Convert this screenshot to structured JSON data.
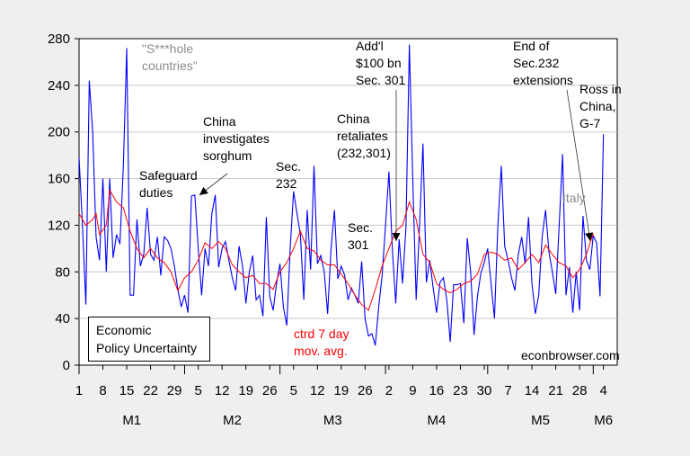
{
  "chart_data": {
    "type": "line",
    "title": "",
    "xlabel": "",
    "ylabel": "",
    "ylim": [
      0,
      280
    ],
    "yticks": [
      0,
      40,
      80,
      120,
      160,
      200,
      240,
      280
    ],
    "grid": true,
    "x_ticks": [
      {
        "day": 1,
        "label": "1"
      },
      {
        "day": 8,
        "label": "8"
      },
      {
        "day": 15,
        "label": "15"
      },
      {
        "day": 22,
        "label": "22"
      },
      {
        "day": 29,
        "label": "29"
      },
      {
        "day": 36,
        "label": "5"
      },
      {
        "day": 43,
        "label": "12"
      },
      {
        "day": 50,
        "label": "19"
      },
      {
        "day": 57,
        "label": "26"
      },
      {
        "day": 64,
        "label": "5"
      },
      {
        "day": 71,
        "label": "12"
      },
      {
        "day": 78,
        "label": "19"
      },
      {
        "day": 85,
        "label": "26"
      },
      {
        "day": 92,
        "label": "2"
      },
      {
        "day": 99,
        "label": "9"
      },
      {
        "day": 106,
        "label": "16"
      },
      {
        "day": 113,
        "label": "23"
      },
      {
        "day": 120,
        "label": "30"
      },
      {
        "day": 127,
        "label": "7"
      },
      {
        "day": 134,
        "label": "14"
      },
      {
        "day": 141,
        "label": "21"
      },
      {
        "day": 148,
        "label": "28"
      },
      {
        "day": 155,
        "label": "4"
      }
    ],
    "months": [
      {
        "start_day": 1,
        "label": "M1"
      },
      {
        "start_day": 32,
        "label": "M2"
      },
      {
        "start_day": 60,
        "label": "M3"
      },
      {
        "start_day": 91,
        "label": "M4"
      },
      {
        "start_day": 121,
        "label": "M5"
      },
      {
        "start_day": 152,
        "label": "M6"
      }
    ],
    "series": [
      {
        "name": "Economic Policy Uncertainty",
        "color": "#0000ff",
        "values": [
          178,
          120,
          52,
          244,
          200,
          110,
          90,
          160,
          80,
          160,
          92,
          112,
          104,
          170,
          272,
          60,
          60,
          125,
          85,
          95,
          135,
          95,
          90,
          110,
          77,
          110,
          107,
          100,
          85,
          65,
          50,
          60,
          45,
          145,
          146,
          100,
          60,
          100,
          85,
          130,
          146,
          84,
          100,
          106,
          90,
          75,
          64,
          102,
          85,
          53,
          80,
          94,
          56,
          60,
          42,
          127,
          59,
          47,
          70,
          87,
          50,
          34,
          100,
          149,
          130,
          112,
          56,
          133,
          82,
          171,
          87,
          94,
          80,
          44,
          100,
          133,
          74,
          85,
          77,
          56,
          66,
          60,
          53,
          89,
          40,
          25,
          27,
          17,
          50,
          77,
          120,
          166,
          100,
          53,
          108,
          70,
          118,
          275,
          160,
          56,
          120,
          190,
          71,
          90,
          66,
          45,
          71,
          75,
          56,
          20,
          69,
          69,
          70,
          36,
          109,
          80,
          26,
          59,
          79,
          88,
          100,
          70,
          40,
          120,
          171,
          102,
          90,
          75,
          64,
          95,
          110,
          87,
          127,
          70,
          44,
          60,
          110,
          133,
          97,
          80,
          61,
          120,
          181,
          60,
          84,
          45,
          80,
          47,
          128,
          90,
          82,
          111,
          105,
          59,
          198
        ]
      },
      {
        "name": "ctrd 7 day mov. avg.",
        "color": "#ff0000",
        "points": [
          [
            1,
            130
          ],
          [
            3,
            120
          ],
          [
            5,
            125
          ],
          [
            6,
            130
          ],
          [
            7,
            112
          ],
          [
            9,
            120
          ],
          [
            10,
            150
          ],
          [
            12,
            140
          ],
          [
            14,
            135
          ],
          [
            16,
            115
          ],
          [
            18,
            100
          ],
          [
            20,
            92
          ],
          [
            22,
            100
          ],
          [
            24,
            92
          ],
          [
            26,
            88
          ],
          [
            28,
            80
          ],
          [
            30,
            64
          ],
          [
            32,
            75
          ],
          [
            34,
            80
          ],
          [
            36,
            90
          ],
          [
            38,
            105
          ],
          [
            40,
            100
          ],
          [
            42,
            106
          ],
          [
            44,
            100
          ],
          [
            46,
            86
          ],
          [
            48,
            80
          ],
          [
            50,
            75
          ],
          [
            52,
            77
          ],
          [
            54,
            70
          ],
          [
            56,
            70
          ],
          [
            58,
            65
          ],
          [
            60,
            80
          ],
          [
            62,
            88
          ],
          [
            64,
            100
          ],
          [
            66,
            115
          ],
          [
            68,
            100
          ],
          [
            70,
            98
          ],
          [
            72,
            90
          ],
          [
            74,
            86
          ],
          [
            76,
            86
          ],
          [
            78,
            78
          ],
          [
            80,
            70
          ],
          [
            82,
            60
          ],
          [
            84,
            52
          ],
          [
            86,
            47
          ],
          [
            88,
            65
          ],
          [
            90,
            85
          ],
          [
            92,
            100
          ],
          [
            94,
            115
          ],
          [
            96,
            120
          ],
          [
            98,
            140
          ],
          [
            100,
            125
          ],
          [
            102,
            95
          ],
          [
            104,
            88
          ],
          [
            106,
            70
          ],
          [
            108,
            65
          ],
          [
            110,
            62
          ],
          [
            112,
            65
          ],
          [
            114,
            70
          ],
          [
            116,
            72
          ],
          [
            118,
            78
          ],
          [
            120,
            95
          ],
          [
            122,
            97
          ],
          [
            124,
            95
          ],
          [
            126,
            90
          ],
          [
            128,
            92
          ],
          [
            130,
            82
          ],
          [
            132,
            88
          ],
          [
            134,
            95
          ],
          [
            136,
            88
          ],
          [
            138,
            103
          ],
          [
            140,
            95
          ],
          [
            142,
            88
          ],
          [
            144,
            85
          ],
          [
            146,
            75
          ],
          [
            148,
            82
          ],
          [
            150,
            95
          ],
          [
            152,
            113
          ]
        ]
      }
    ]
  },
  "annotations": {
    "shithole": "\"S***hole\ncountries\"",
    "safeguard": "Safeguard\nduties",
    "sorghum": "China\ninvestigates\nsorghum",
    "sec232": "Sec.\n232",
    "addl": "Add'l\n$100 bn\nSec. 301",
    "retaliates": "China\nretaliates\n(232,301)",
    "sec301": "Sec.\n301",
    "end232": "End of\nSec.232\nextensions",
    "ross": "Ross in\nChina,\nG-7",
    "italy": "Italy",
    "ma_label": "ctrd 7 day\nmov. avg.",
    "source": "econbrowser.com",
    "legend": "Economic\nPolicy Uncertainty"
  }
}
